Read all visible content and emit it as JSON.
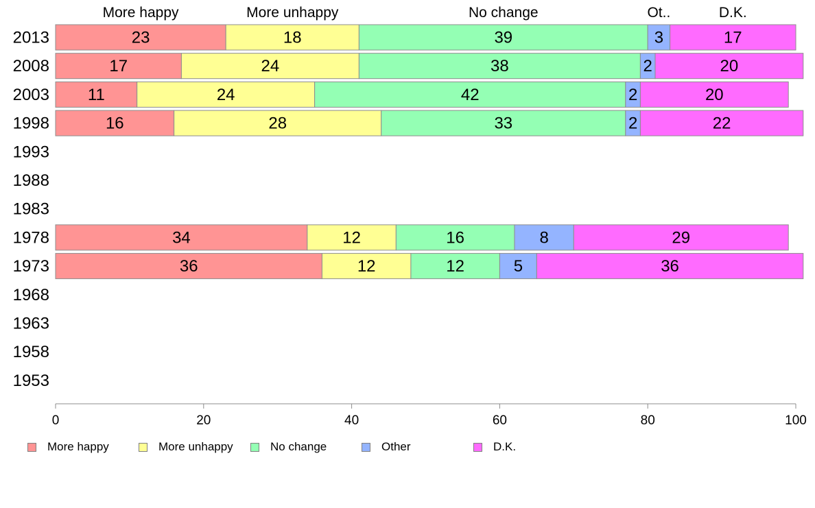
{
  "chart_data": {
    "type": "bar",
    "orientation": "horizontal",
    "stacked": true,
    "categories": [
      "2013",
      "2008",
      "2003",
      "1998",
      "1993",
      "1988",
      "1983",
      "1978",
      "1973",
      "1968",
      "1963",
      "1958",
      "1953"
    ],
    "series": [
      {
        "name": "More happy",
        "color": "#ff9494",
        "values": [
          23,
          17,
          11,
          16,
          null,
          null,
          null,
          34,
          36,
          null,
          null,
          null,
          null
        ]
      },
      {
        "name": "More unhappy",
        "color": "#ffff94",
        "values": [
          18,
          24,
          24,
          28,
          null,
          null,
          null,
          12,
          12,
          null,
          null,
          null,
          null
        ]
      },
      {
        "name": "No change",
        "color": "#94ffb4",
        "values": [
          39,
          38,
          42,
          33,
          null,
          null,
          null,
          16,
          12,
          null,
          null,
          null,
          null
        ]
      },
      {
        "name": "Other",
        "color": "#94b4ff",
        "values": [
          3,
          2,
          2,
          2,
          null,
          null,
          null,
          8,
          5,
          null,
          null,
          null,
          null
        ]
      },
      {
        "name": "D.K.",
        "color": "#ff6bff",
        "values": [
          17,
          20,
          20,
          22,
          null,
          null,
          null,
          29,
          36,
          null,
          null,
          null,
          null
        ]
      }
    ],
    "top_labels": [
      "More happy",
      "More unhappy",
      "No change",
      "Ot..",
      "D.K."
    ],
    "xlim": [
      0,
      100
    ],
    "xticks": [
      0,
      20,
      40,
      60,
      80,
      100
    ],
    "grid": false,
    "legend_position": "bottom"
  }
}
